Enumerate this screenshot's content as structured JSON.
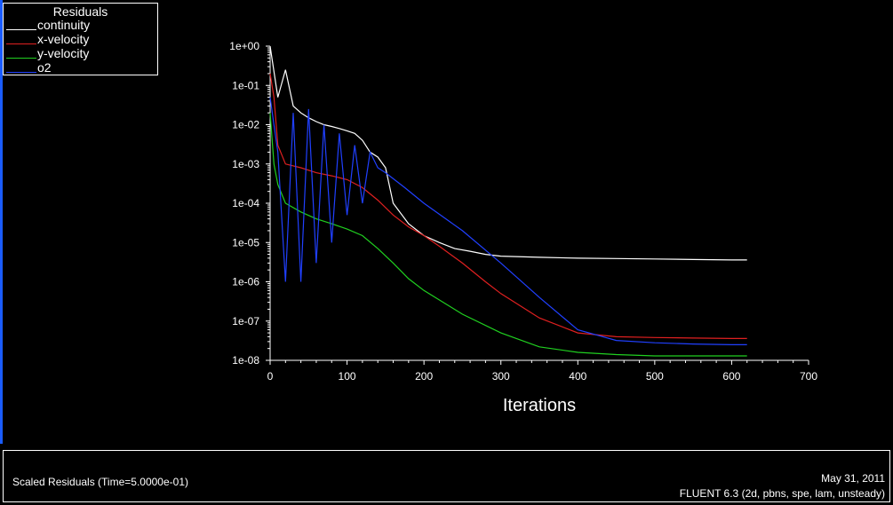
{
  "legend": {
    "title": "Residuals",
    "items": [
      {
        "label": "continuity",
        "color": "#ffffff"
      },
      {
        "label": "x-velocity",
        "color": "#e02020"
      },
      {
        "label": "y-velocity",
        "color": "#20d020"
      },
      {
        "label": "o2",
        "color": "#2040ff"
      }
    ]
  },
  "footer": {
    "title": "Scaled Residuals  (Time=5.0000e-01)",
    "date": "May 31, 2011",
    "solver": "FLUENT 6.3 (2d, pbns, spe, lam, unsteady)"
  },
  "chart_data": {
    "type": "line",
    "title": "",
    "xlabel": "Iterations",
    "ylabel": "",
    "xlim": [
      0,
      700
    ],
    "ylim": [
      1e-08,
      1
    ],
    "yscale": "log",
    "xticks": [
      0,
      100,
      200,
      300,
      400,
      500,
      600,
      700
    ],
    "yticks": [
      "1e+00",
      "1e-01",
      "1e-02",
      "1e-03",
      "1e-04",
      "1e-05",
      "1e-06",
      "1e-07",
      "1e-08"
    ],
    "grid": false,
    "legend_position": "top-left",
    "series": [
      {
        "name": "continuity",
        "color": "#ffffff",
        "x": [
          0,
          10,
          20,
          30,
          40,
          50,
          60,
          70,
          80,
          90,
          100,
          110,
          120,
          130,
          140,
          150,
          160,
          180,
          200,
          220,
          240,
          260,
          280,
          300,
          350,
          400,
          450,
          500,
          550,
          600,
          620
        ],
        "y": [
          1.0,
          0.05,
          0.25,
          0.03,
          0.02,
          0.015,
          0.012,
          0.01,
          0.009,
          0.008,
          0.007,
          0.006,
          0.004,
          0.002,
          0.0015,
          0.0008,
          0.0001,
          3e-05,
          1.5e-05,
          1e-05,
          7e-06,
          6e-06,
          5e-06,
          4.5e-06,
          4.2e-06,
          4e-06,
          3.9e-06,
          3.8e-06,
          3.7e-06,
          3.6e-06,
          3.6e-06
        ]
      },
      {
        "name": "x-velocity",
        "color": "#e02020",
        "x": [
          0,
          5,
          10,
          20,
          40,
          60,
          80,
          100,
          120,
          140,
          160,
          180,
          200,
          220,
          250,
          280,
          300,
          350,
          400,
          450,
          500,
          550,
          600,
          620
        ],
        "y": [
          0.2,
          0.05,
          0.003,
          0.001,
          0.0008,
          0.0006,
          0.0005,
          0.0004,
          0.00025,
          0.00012,
          5e-05,
          2.5e-05,
          1.5e-05,
          8e-06,
          3e-06,
          1e-06,
          5e-07,
          1.2e-07,
          5e-08,
          4e-08,
          3.8e-08,
          3.7e-08,
          3.6e-08,
          3.6e-08
        ]
      },
      {
        "name": "y-velocity",
        "color": "#20d020",
        "x": [
          0,
          5,
          10,
          20,
          40,
          60,
          80,
          100,
          120,
          140,
          160,
          180,
          200,
          250,
          300,
          350,
          400,
          450,
          500,
          550,
          600,
          620
        ],
        "y": [
          0.02,
          0.001,
          0.0003,
          0.0001,
          6e-05,
          4e-05,
          3e-05,
          2.2e-05,
          1.5e-05,
          7e-06,
          3e-06,
          1.2e-06,
          6e-07,
          1.5e-07,
          5e-08,
          2.2e-08,
          1.6e-08,
          1.4e-08,
          1.3e-08,
          1.3e-08,
          1.3e-08,
          1.3e-08
        ]
      },
      {
        "name": "o2",
        "color": "#2040ff",
        "x": [
          0,
          5,
          10,
          20,
          30,
          40,
          50,
          60,
          70,
          80,
          90,
          100,
          110,
          120,
          130,
          140,
          150,
          175,
          200,
          250,
          300,
          350,
          400,
          450,
          500,
          550,
          600,
          620
        ],
        "y": [
          0.05,
          0.01,
          0.002,
          1e-06,
          0.02,
          1e-06,
          0.025,
          3e-06,
          0.01,
          1e-05,
          0.006,
          5e-05,
          0.003,
          0.0001,
          0.002,
          0.0008,
          0.0006,
          0.00025,
          0.0001,
          2e-05,
          3e-06,
          4e-07,
          6e-08,
          3.2e-08,
          2.8e-08,
          2.6e-08,
          2.5e-08,
          2.5e-08
        ]
      }
    ]
  }
}
